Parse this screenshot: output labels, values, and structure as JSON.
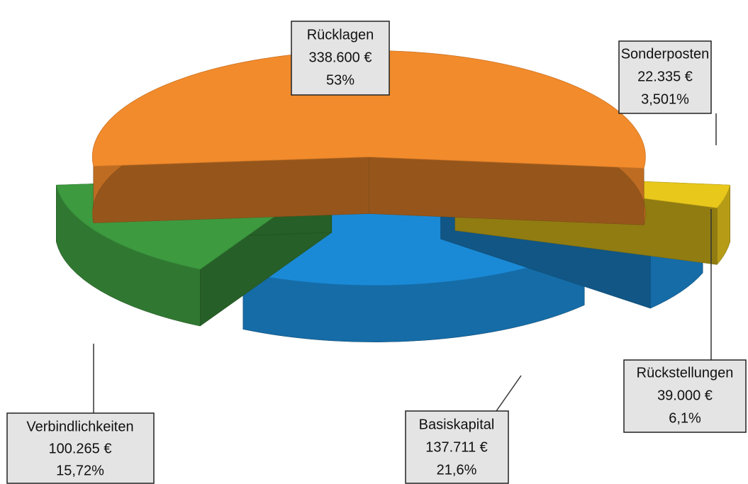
{
  "chart_data": {
    "type": "pie",
    "categories": [
      "Rücklagen",
      "Sonderposten",
      "Rückstellungen",
      "Basiskapital",
      "Verbindlichkeiten"
    ],
    "values": [
      338600,
      22335,
      39000,
      137711,
      100265
    ],
    "value_labels": [
      "338.600 €",
      "22.335 €",
      "39.000 €",
      "137.711 €",
      "100.265 €"
    ],
    "percentages": [
      53,
      3.501,
      6.1,
      21.6,
      15.72
    ],
    "percentage_labels": [
      "53%",
      "3,501%",
      "6,1%",
      "21,6%",
      "15,72%"
    ],
    "colors": [
      "#f28b2c",
      "#e9c81c",
      "#1b8ad6",
      "#1b8ad6",
      "#3d9a3f"
    ]
  }
}
